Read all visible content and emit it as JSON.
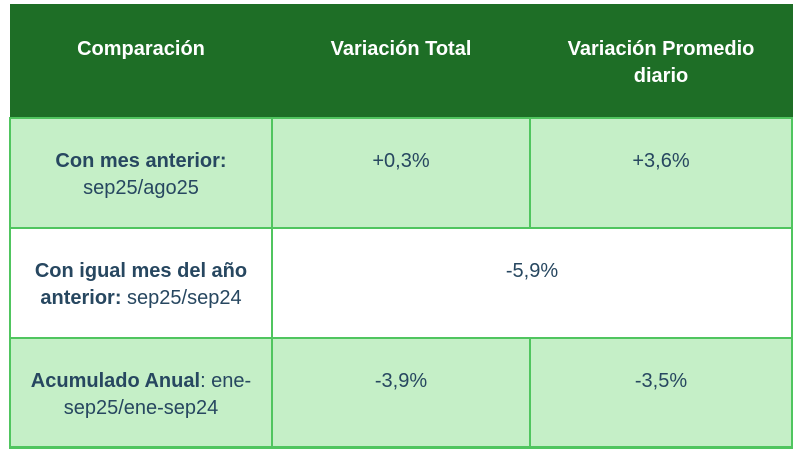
{
  "table": {
    "columns": [
      {
        "label": "Comparación"
      },
      {
        "label": "Variación Total"
      },
      {
        "label": "Variación Promedio diario"
      }
    ],
    "rows": [
      {
        "label_bold": "Con mes anterior:",
        "label_rest": " sep25/ago25",
        "variacion_total": "+0,3%",
        "variacion_promedio_diario": "+3,6%"
      },
      {
        "label_bold": "Con igual mes del año anterior:",
        "label_rest": " sep25/sep24",
        "variacion_merged": "-5,9%"
      },
      {
        "label_bold": "Acumulado Anual",
        "label_rest": ": ene-sep25/ene-sep24",
        "variacion_total": "-3,9%",
        "variacion_promedio_diario": "-3,5%"
      }
    ],
    "colors": {
      "header_bg": "#1e6e26",
      "header_text": "#ffffff",
      "row_green_bg": "#c5efc7",
      "row_white_bg": "#ffffff",
      "border_green": "#50c55f",
      "cell_text": "#274760"
    }
  },
  "chart_data": {
    "type": "table",
    "title": "",
    "columns": [
      "Comparación",
      "Variación Total",
      "Variación Promedio diario"
    ],
    "rows": [
      [
        "Con mes anterior: sep25/ago25",
        "+0,3%",
        "+3,6%"
      ],
      [
        "Con igual mes del año anterior: sep25/sep24",
        "-5,9% (merged across both variation columns)"
      ],
      [
        "Acumulado Anual: ene-sep25/ene-sep24",
        "-3,9%",
        "-3,5%"
      ]
    ],
    "values_numeric_percent": {
      "mes_anterior": {
        "total": 0.3,
        "promedio_diario": 3.6
      },
      "igual_mes_anio_anterior": {
        "total": -5.9
      },
      "acumulado_anual": {
        "total": -3.9,
        "promedio_diario": -3.5
      }
    }
  }
}
